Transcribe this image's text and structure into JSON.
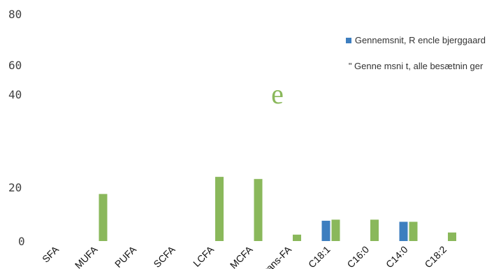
{
  "chart_data": {
    "type": "bar",
    "categories": [
      "SFA",
      "MUFA",
      "PUFA",
      "SCFA",
      "LCFA",
      "MCFA",
      "Trans-FA",
      "C18:1",
      "C16:0",
      "C14:0",
      "C18:2"
    ],
    "y_ticks": [
      "0",
      "20",
      "40",
      "60",
      "80"
    ],
    "ylim": [
      0,
      80
    ],
    "series": [
      {
        "name": "Gennemsnit, R encle bjerggaard",
        "color": "#3d7ebf",
        "values": [
          null,
          null,
          null,
          null,
          null,
          null,
          null,
          9.5,
          null,
          9,
          null
        ]
      },
      {
        "name": "\" Genne msni t, alle besætnin ger",
        "color": "#8ab85b",
        "values": [
          null,
          22,
          null,
          null,
          30,
          29,
          3,
          10,
          10,
          9,
          4
        ]
      }
    ],
    "legend": {
      "position": "top-right"
    },
    "annotations": [
      "e"
    ],
    "grid": false
  }
}
